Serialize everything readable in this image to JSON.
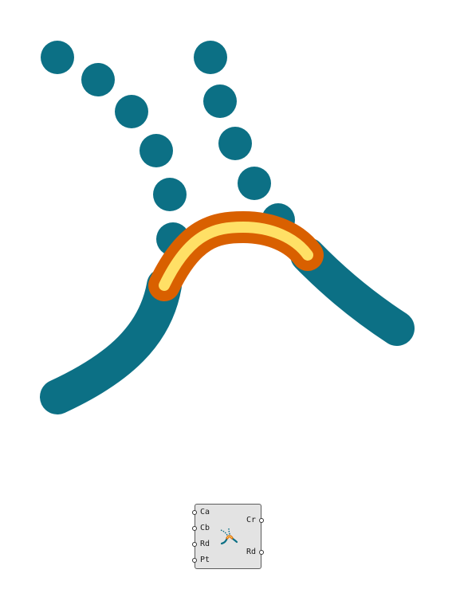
{
  "colors": {
    "background": "#ffffff",
    "curve": "#0c7085",
    "points": "#0c7085",
    "fillet_outer": "#d96000",
    "fillet_inner": "#ffe066",
    "node_bg": "#e3e3e3",
    "node_border": "#5a5a5a"
  },
  "component": {
    "inputs": [
      "Ca",
      "Cb",
      "Rd",
      "Pt"
    ],
    "outputs": [
      "Cr",
      "Rd"
    ],
    "icon": "fillet-curves-icon"
  }
}
